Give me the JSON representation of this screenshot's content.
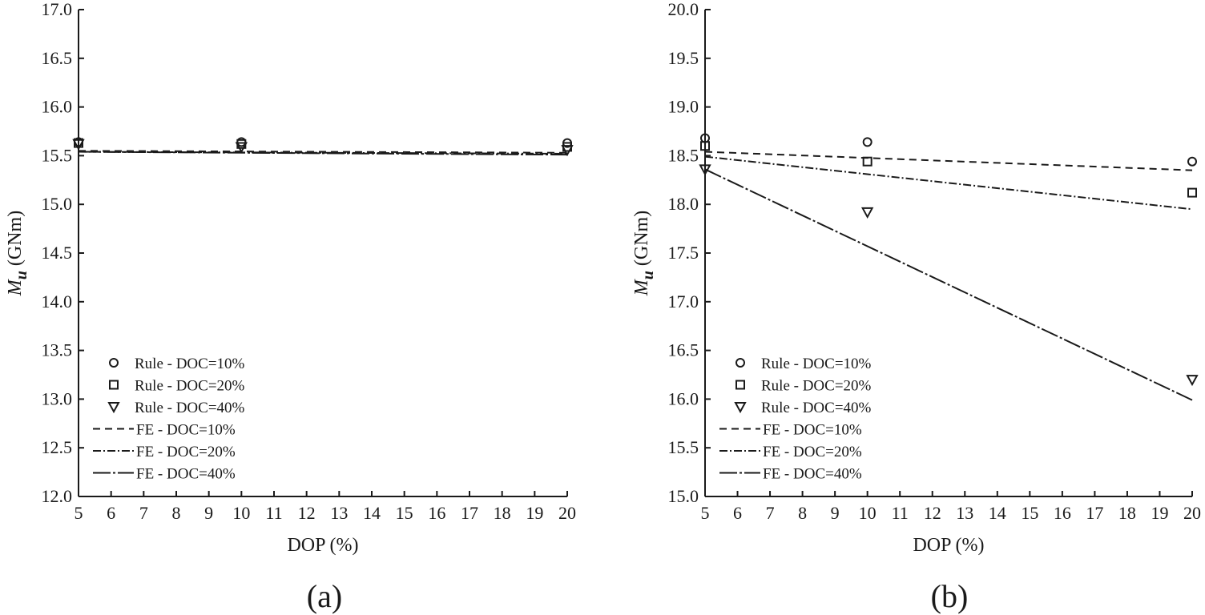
{
  "chart_data": [
    {
      "type": "scatter",
      "panel_label": "(a)",
      "xlabel": "DOP (%)",
      "ylabel_symbol": "M",
      "ylabel_subscript": "u",
      "ylabel_unit": "(GNm)",
      "xlim": [
        5,
        20
      ],
      "ylim": [
        12.0,
        17.0
      ],
      "x_ticks": [
        "5",
        "6",
        "7",
        "8",
        "9",
        "10",
        "11",
        "12",
        "13",
        "14",
        "15",
        "16",
        "17",
        "18",
        "19",
        "20"
      ],
      "y_ticks": [
        "12.0",
        "12.5",
        "13.0",
        "13.5",
        "14.0",
        "14.5",
        "15.0",
        "15.5",
        "16.0",
        "16.5",
        "17.0"
      ],
      "grid": false,
      "legend_position": "lower-left",
      "series": [
        {
          "name": "Rule - DOC=10%",
          "kind": "marker",
          "marker": "circle",
          "x": [
            5,
            10,
            20
          ],
          "y": [
            15.64,
            15.64,
            15.63
          ]
        },
        {
          "name": "Rule - DOC=20%",
          "kind": "marker",
          "marker": "square",
          "x": [
            5,
            10,
            20
          ],
          "y": [
            15.63,
            15.62,
            15.59
          ]
        },
        {
          "name": "Rule - DOC=40%",
          "kind": "marker",
          "marker": "triangle-down",
          "x": [
            5,
            10,
            20
          ],
          "y": [
            15.62,
            15.59,
            15.56
          ]
        },
        {
          "name": "FE - DOC=10%",
          "kind": "line",
          "dash": "dashed",
          "x": [
            5,
            20
          ],
          "y": [
            15.55,
            15.53
          ]
        },
        {
          "name": "FE - DOC=20%",
          "kind": "line",
          "dash": "dashdot",
          "x": [
            5,
            20
          ],
          "y": [
            15.54,
            15.52
          ]
        },
        {
          "name": "FE - DOC=40%",
          "kind": "line",
          "dash": "longdash",
          "x": [
            5,
            20
          ],
          "y": [
            15.54,
            15.51
          ]
        }
      ]
    },
    {
      "type": "scatter",
      "panel_label": "(b)",
      "xlabel": "DOP (%)",
      "ylabel_symbol": "M",
      "ylabel_subscript": "u",
      "ylabel_unit": "(GNm)",
      "xlim": [
        5,
        20
      ],
      "ylim": [
        15.0,
        20.0
      ],
      "x_ticks": [
        "5",
        "6",
        "7",
        "8",
        "9",
        "10",
        "11",
        "12",
        "13",
        "14",
        "15",
        "16",
        "17",
        "18",
        "19",
        "20"
      ],
      "y_ticks": [
        "15.0",
        "15.5",
        "16.0",
        "16.5",
        "17.0",
        "17.5",
        "18.0",
        "18.5",
        "19.0",
        "19.5",
        "20.0"
      ],
      "y_tick_values": [
        15.0,
        15.5,
        16.0,
        16.5,
        17.0,
        17.5,
        18.0,
        18.5,
        19.0,
        19.5,
        20.0
      ],
      "grid": false,
      "legend_position": "lower-left",
      "series": [
        {
          "name": "Rule - DOC=10%",
          "kind": "marker",
          "marker": "circle",
          "x": [
            5,
            10,
            20
          ],
          "y": [
            18.68,
            18.64,
            18.44
          ]
        },
        {
          "name": "Rule - DOC=20%",
          "kind": "marker",
          "marker": "square",
          "x": [
            5,
            10,
            20
          ],
          "y": [
            18.6,
            18.44,
            18.12
          ]
        },
        {
          "name": "Rule - DOC=40%",
          "kind": "marker",
          "marker": "triangle-down",
          "x": [
            5,
            10,
            20
          ],
          "y": [
            18.36,
            17.92,
            16.2
          ]
        },
        {
          "name": "FE - DOC=10%",
          "kind": "line",
          "dash": "dashed",
          "x": [
            5,
            20
          ],
          "y": [
            18.54,
            18.35
          ]
        },
        {
          "name": "FE - DOC=20%",
          "kind": "line",
          "dash": "dashdot",
          "x": [
            5,
            20
          ],
          "y": [
            18.49,
            17.95
          ]
        },
        {
          "name": "FE - DOC=40%",
          "kind": "line",
          "dash": "longdash",
          "x": [
            5,
            20
          ],
          "y": [
            18.36,
            15.99
          ]
        }
      ]
    }
  ]
}
